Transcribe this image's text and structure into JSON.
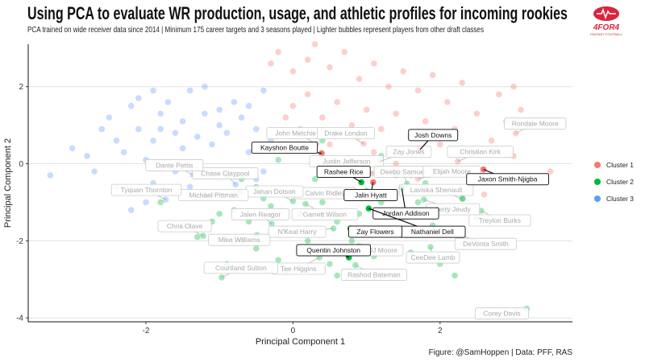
{
  "chart_data": {
    "type": "scatter",
    "title": "Using PCA to evaluate WR production, usage, and athletic profiles for incoming rookies",
    "subtitle": "PCA trained on wide receiver data since 2014 | Minimum 175 career targets and 3 seasons played | Lighter bubbles represent players from other draft classes",
    "caption": "Figure: @SamHoppen | Data: PFF, RAS",
    "xlabel": "Principal Component 1",
    "ylabel": "Principal Component 2",
    "xlim": [
      -3.6,
      3.8
    ],
    "ylim": [
      -4.1,
      3.1
    ],
    "xticks": [
      -2,
      0,
      2
    ],
    "yticks": [
      -4,
      -2,
      0,
      2
    ],
    "grid": "horizontal major",
    "legend": {
      "placement": "right",
      "entries": [
        {
          "label": "Cluster 1",
          "color": "#F8766D"
        },
        {
          "label": "Cluster 2",
          "color": "#00BA38"
        },
        {
          "label": "Cluster 3",
          "color": "#619CFF"
        }
      ]
    },
    "labeled_points": [
      {
        "name": "Kayshon Boutte",
        "x": 0.39,
        "y": 0.27,
        "cluster": 1,
        "current": true
      },
      {
        "name": "Josh Downs",
        "x": 1.73,
        "y": 0.37,
        "cluster": 1,
        "current": true
      },
      {
        "name": "Rashee Rice",
        "x": 0.93,
        "y": -0.48,
        "cluster": 2,
        "current": true
      },
      {
        "name": "Jalin Hyatt",
        "x": 1.09,
        "y": -0.48,
        "cluster": 1,
        "current": true
      },
      {
        "name": "Jaxon Smith-Njigba",
        "x": 2.59,
        "y": -0.15,
        "cluster": 1,
        "current": true
      },
      {
        "name": "Jordan Addison",
        "x": 1.48,
        "y": -0.64,
        "cluster": 2,
        "current": true
      },
      {
        "name": "Nathaniel Dell",
        "x": 1.03,
        "y": -1.16,
        "cluster": 2,
        "current": true
      },
      {
        "name": "Zay Flowers",
        "x": 0.78,
        "y": -1.68,
        "cluster": 2,
        "current": true
      },
      {
        "name": "Quentin Johnston",
        "x": 0.76,
        "y": -2.43,
        "cluster": 2,
        "current": true
      },
      {
        "name": "John Metchie",
        "x": 0.32,
        "y": 0.52,
        "cluster": 1,
        "current": false
      },
      {
        "name": "Drake London",
        "x": 0.96,
        "y": 0.52,
        "cluster": 1,
        "current": false
      },
      {
        "name": "Justin Jefferson",
        "x": 1.09,
        "y": -0.25,
        "cluster": 1,
        "current": false
      },
      {
        "name": "Zay Jones",
        "x": 1.18,
        "y": 0.06,
        "cluster": 1,
        "current": false
      },
      {
        "name": "Deebo Samuel",
        "x": 1.55,
        "y": -0.52,
        "cluster": 2,
        "current": false
      },
      {
        "name": "Elijah Moore",
        "x": 1.7,
        "y": -0.39,
        "cluster": 1,
        "current": false
      },
      {
        "name": "Rondale Moore",
        "x": 3.03,
        "y": 0.79,
        "cluster": 1,
        "current": false
      },
      {
        "name": "Christian Kirk",
        "x": 2.24,
        "y": 0.06,
        "cluster": 1,
        "current": false
      },
      {
        "name": "Laviska Shenault",
        "x": 2.31,
        "y": -0.91,
        "cluster": 2,
        "current": false
      },
      {
        "name": "Jerry Jeudy",
        "x": 1.78,
        "y": -0.93,
        "cluster": 2,
        "current": false
      },
      {
        "name": "Treylon Burks",
        "x": 2.56,
        "y": -1.22,
        "cluster": 2,
        "current": false
      },
      {
        "name": "DeVonta Smith",
        "x": 2.27,
        "y": -1.85,
        "cluster": 2,
        "current": false
      },
      {
        "name": "CeeDee Lamb",
        "x": 1.87,
        "y": -2.16,
        "cluster": 2,
        "current": false
      },
      {
        "name": "DJ Moore",
        "x": 0.9,
        "y": -2.14,
        "cluster": 2,
        "current": false
      },
      {
        "name": "Rashod Bateman",
        "x": 0.85,
        "y": -2.63,
        "cluster": 2,
        "current": false
      },
      {
        "name": "Corey Davis",
        "x": 3.18,
        "y": -3.76,
        "cluster": 2,
        "current": false
      },
      {
        "name": "Tee Higgins",
        "x": 0.36,
        "y": -2.43,
        "cluster": 2,
        "current": false
      },
      {
        "name": "N'Keal Harry",
        "x": 0.55,
        "y": -1.68,
        "cluster": 2,
        "current": false
      },
      {
        "name": "Garrett Wilson",
        "x": 0.17,
        "y": -1.04,
        "cluster": 2,
        "current": false
      },
      {
        "name": "Calvin Ridley",
        "x": 0.72,
        "y": -0.7,
        "cluster": 2,
        "current": false
      },
      {
        "name": "Jahan Dotson",
        "x": 0.0,
        "y": -0.97,
        "cluster": 2,
        "current": false
      },
      {
        "name": "Jalen Reagor",
        "x": -0.29,
        "y": -1.56,
        "cluster": 2,
        "current": false
      },
      {
        "name": "Mike Williams",
        "x": -0.49,
        "y": -1.85,
        "cluster": 2,
        "current": false
      },
      {
        "name": "Courtland Sutton",
        "x": -0.97,
        "y": -2.95,
        "cluster": 2,
        "current": false
      },
      {
        "name": "Chris Olave",
        "x": -1.22,
        "y": -1.87,
        "cluster": 2,
        "current": false
      },
      {
        "name": "Michael Pittman",
        "x": -0.71,
        "y": -0.73,
        "cluster": 2,
        "current": false
      },
      {
        "name": "Chase Claypool",
        "x": -0.78,
        "y": -0.54,
        "cluster": 3,
        "current": false
      },
      {
        "name": "Dante Pettis",
        "x": -1.36,
        "y": -0.29,
        "cluster": 3,
        "current": false
      },
      {
        "name": "Tyquan Thornton",
        "x": -1.73,
        "y": -0.93,
        "cluster": 3,
        "current": false
      }
    ],
    "other_points": {
      "cluster1": [
        [
          -0.3,
          2.6
        ],
        [
          -0.2,
          2.9
        ],
        [
          0.0,
          2.4
        ],
        [
          0.2,
          2.7
        ],
        [
          0.3,
          3.1
        ],
        [
          0.5,
          2.5
        ],
        [
          0.7,
          2.9
        ],
        [
          0.9,
          2.2
        ],
        [
          1.1,
          2.6
        ],
        [
          1.3,
          2.0
        ],
        [
          1.5,
          2.4
        ],
        [
          1.7,
          1.9
        ],
        [
          1.9,
          2.3
        ],
        [
          2.1,
          1.6
        ],
        [
          2.3,
          2.1
        ],
        [
          2.5,
          1.3
        ],
        [
          2.8,
          1.8
        ],
        [
          3.0,
          2.0
        ],
        [
          0.0,
          1.5
        ],
        [
          0.2,
          1.8
        ],
        [
          0.4,
          1.2
        ],
        [
          0.6,
          1.6
        ],
        [
          0.8,
          1.0
        ],
        [
          1.0,
          1.4
        ],
        [
          1.2,
          0.9
        ],
        [
          1.4,
          1.3
        ],
        [
          1.6,
          0.7
        ],
        [
          1.8,
          1.1
        ],
        [
          2.0,
          0.5
        ],
        [
          2.2,
          0.9
        ],
        [
          2.4,
          0.3
        ],
        [
          2.7,
          0.6
        ],
        [
          3.0,
          0.2
        ],
        [
          3.5,
          -0.2
        ],
        [
          1.1,
          0.3
        ],
        [
          1.4,
          0.0
        ],
        [
          1.6,
          -0.3
        ],
        [
          0.5,
          0.5
        ],
        [
          0.1,
          0.9
        ],
        [
          -0.1,
          1.2
        ],
        [
          2.6,
          -0.8
        ],
        [
          0.9,
          0.7
        ],
        [
          1.7,
          0.4
        ],
        [
          2.9,
          1.1
        ],
        [
          3.1,
          1.4
        ]
      ],
      "cluster2": [
        [
          -1.8,
          -1.0
        ],
        [
          -1.5,
          -1.6
        ],
        [
          -1.3,
          -1.9
        ],
        [
          -1.1,
          -1.5
        ],
        [
          -1.0,
          -1.3
        ],
        [
          -0.9,
          -2.6
        ],
        [
          -0.8,
          -1.2
        ],
        [
          -0.7,
          -2.0
        ],
        [
          -0.6,
          -1.5
        ],
        [
          -0.5,
          -2.2
        ],
        [
          -0.4,
          -0.9
        ],
        [
          -0.3,
          -1.1
        ],
        [
          -0.2,
          -2.5
        ],
        [
          -0.1,
          -1.7
        ],
        [
          0.0,
          -0.7
        ],
        [
          0.1,
          -1.3
        ],
        [
          0.2,
          -2.0
        ],
        [
          0.3,
          -0.4
        ],
        [
          0.4,
          -1.0
        ],
        [
          0.5,
          -2.6
        ],
        [
          0.6,
          -1.5
        ],
        [
          0.7,
          -0.2
        ],
        [
          0.8,
          -2.0
        ],
        [
          0.9,
          -1.3
        ],
        [
          1.0,
          -0.7
        ],
        [
          1.1,
          -2.4
        ],
        [
          1.2,
          -1.0
        ],
        [
          1.3,
          -1.8
        ],
        [
          1.4,
          -0.3
        ],
        [
          1.5,
          -1.4
        ],
        [
          1.6,
          -2.3
        ],
        [
          1.7,
          -1.0
        ],
        [
          1.8,
          -0.5
        ],
        [
          1.9,
          -1.6
        ],
        [
          2.0,
          -2.6
        ],
        [
          2.1,
          -1.2
        ],
        [
          2.2,
          -2.9
        ],
        [
          2.3,
          -0.9
        ],
        [
          2.5,
          -1.4
        ],
        [
          -0.4,
          0.4
        ],
        [
          -0.2,
          0.1
        ],
        [
          -0.5,
          -0.6
        ],
        [
          0.4,
          0.6
        ],
        [
          1.2,
          0.2
        ],
        [
          -1.2,
          -0.8
        ],
        [
          -0.7,
          -0.4
        ],
        [
          0.6,
          -2.9
        ],
        [
          -0.1,
          -2.8
        ]
      ],
      "cluster3": [
        [
          -3.3,
          -0.3
        ],
        [
          -3.0,
          0.4
        ],
        [
          -2.8,
          0.2
        ],
        [
          -2.6,
          0.9
        ],
        [
          -2.5,
          1.2
        ],
        [
          -2.4,
          0.6
        ],
        [
          -2.3,
          0.3
        ],
        [
          -2.2,
          1.5
        ],
        [
          -2.1,
          0.9
        ],
        [
          -2.0,
          0.1
        ],
        [
          -1.9,
          1.9
        ],
        [
          -1.9,
          0.6
        ],
        [
          -1.8,
          1.3
        ],
        [
          -1.7,
          1.6
        ],
        [
          -1.6,
          0.8
        ],
        [
          -1.5,
          1.1
        ],
        [
          -1.5,
          0.4
        ],
        [
          -1.4,
          1.9
        ],
        [
          -1.3,
          0.7
        ],
        [
          -1.2,
          2.0
        ],
        [
          -1.2,
          1.3
        ],
        [
          -1.1,
          0.5
        ],
        [
          -1.0,
          1.0
        ],
        [
          -0.9,
          0.8
        ],
        [
          -0.8,
          1.6
        ],
        [
          -0.7,
          1.2
        ],
        [
          -0.6,
          0.3
        ],
        [
          -0.5,
          0.9
        ],
        [
          -0.4,
          1.9
        ],
        [
          -0.3,
          0.6
        ],
        [
          -2.7,
          -0.2
        ],
        [
          -2.4,
          -0.6
        ],
        [
          -2.2,
          -1.2
        ],
        [
          -2.0,
          -1.0
        ],
        [
          -1.9,
          -0.5
        ],
        [
          -1.6,
          -0.2
        ],
        [
          -1.4,
          -0.6
        ],
        [
          -1.1,
          -0.8
        ],
        [
          -0.9,
          -0.3
        ],
        [
          -0.5,
          -0.4
        ],
        [
          -0.4,
          -0.2
        ],
        [
          -2.1,
          1.7
        ],
        [
          -1.8,
          0.9
        ],
        [
          -1.0,
          1.4
        ],
        [
          -0.6,
          1.5
        ]
      ]
    }
  },
  "logo": {
    "text": "4FOR4",
    "subtext": "FANTASY FOOTBALL",
    "color": "#D7263D"
  }
}
